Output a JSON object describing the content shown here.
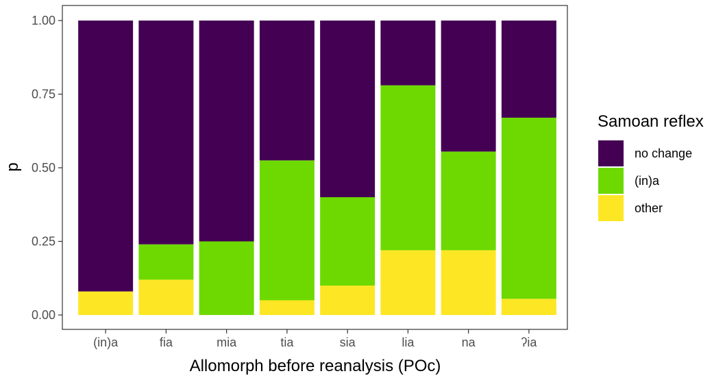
{
  "chart_data": {
    "type": "bar",
    "stacked": true,
    "xlabel": "Allomorph before reanalysis (POc)",
    "ylabel": "p",
    "ylim": [
      0,
      1
    ],
    "yticks": [
      "0.00",
      "0.25",
      "0.50",
      "0.75",
      "1.00"
    ],
    "categories": [
      "(in)a",
      "fia",
      "mia",
      "tia",
      "sia",
      "lia",
      "na",
      "ʔia"
    ],
    "series": [
      {
        "name": "other",
        "color": "#FDE725",
        "values": [
          0.08,
          0.12,
          0.0,
          0.05,
          0.1,
          0.22,
          0.22,
          0.055
        ]
      },
      {
        "name": "(in)a",
        "color": "#6DD900",
        "values": [
          0.0,
          0.12,
          0.25,
          0.475,
          0.3,
          0.56,
          0.335,
          0.615
        ]
      },
      {
        "name": "no change",
        "color": "#440154",
        "values": [
          0.92,
          0.76,
          0.75,
          0.475,
          0.6,
          0.22,
          0.445,
          0.33
        ]
      }
    ],
    "legend": {
      "title": "Samoan reflex",
      "position": "right",
      "order": [
        "no change",
        "(in)a",
        "other"
      ]
    },
    "grid": false
  }
}
